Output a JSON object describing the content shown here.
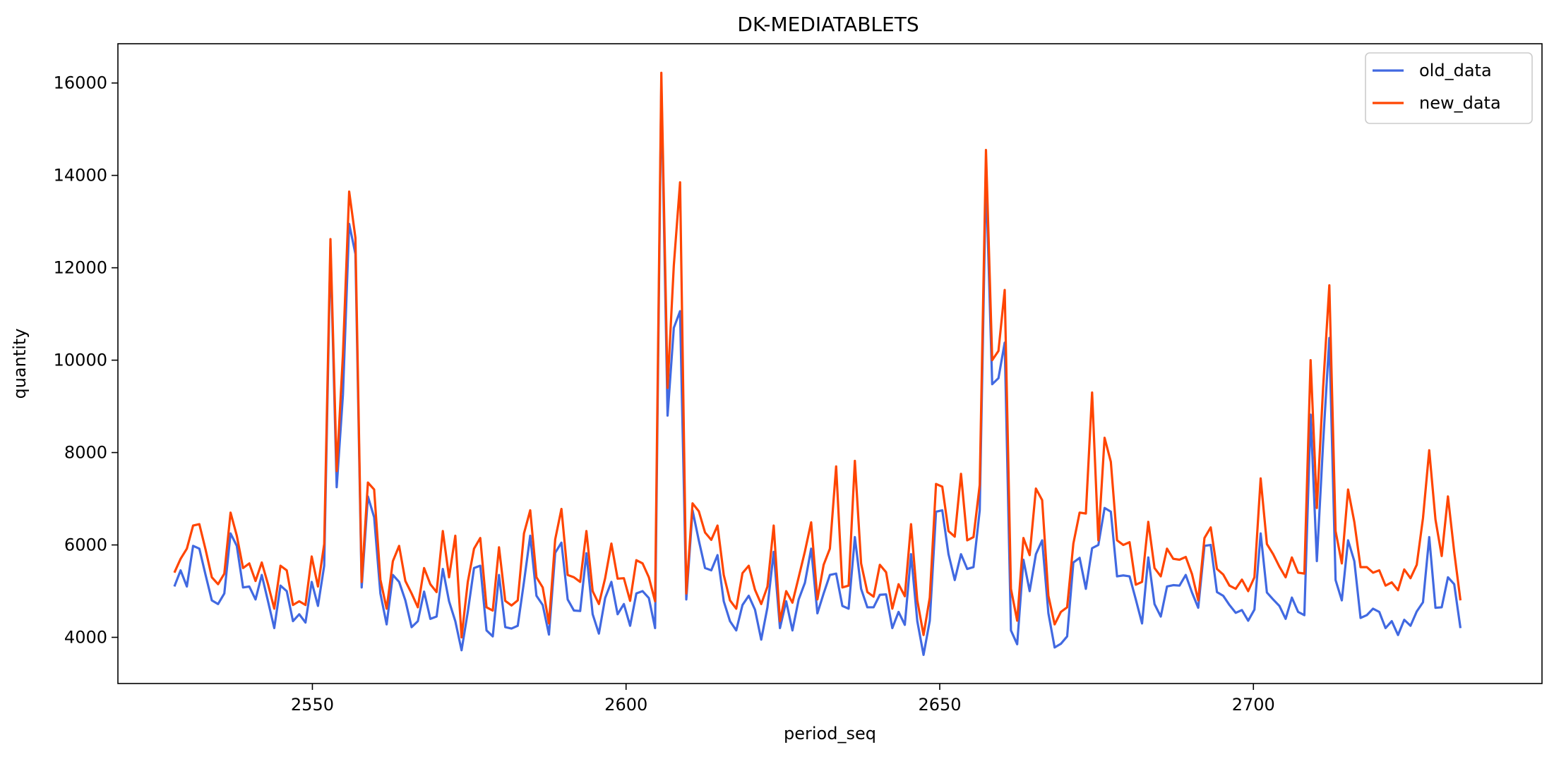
{
  "chart_data": {
    "type": "line",
    "title": "DK-MEDIATABLETS",
    "xlabel": "period_seq",
    "ylabel": "quantity",
    "xlim": [
      2519,
      2746
    ],
    "ylim": [
      3000,
      16850
    ],
    "x_ticks": [
      2550,
      2600,
      2650,
      2700
    ],
    "y_ticks": [
      4000,
      6000,
      8000,
      10000,
      12000,
      14000,
      16000
    ],
    "grid": false,
    "legend_position": "top-right",
    "colors": {
      "old_data": "#4169E1",
      "new_data": "#FF4500"
    },
    "x_start": 2528,
    "x_end": 2733,
    "series": [
      {
        "name": "old_data",
        "color": "#4169E1",
        "values": [
          5100,
          5450,
          5100,
          5980,
          5920,
          5350,
          4800,
          4720,
          4950,
          6250,
          5980,
          5080,
          5100,
          4820,
          5350,
          4780,
          4200,
          5120,
          5000,
          4350,
          4500,
          4320,
          5200,
          4680,
          5550,
          12450,
          7250,
          9250,
          12950,
          12300,
          5080,
          7050,
          6600,
          4950,
          4280,
          5350,
          5200,
          4800,
          4220,
          4350,
          4990,
          4400,
          4450,
          5480,
          4780,
          4350,
          3720,
          4550,
          5500,
          5550,
          4150,
          4020,
          5350,
          4220,
          4190,
          4250,
          5200,
          6200,
          4900,
          4700,
          4060,
          5830,
          6050,
          4820,
          4580,
          4570,
          5820,
          4500,
          4080,
          4850,
          5200,
          4500,
          4720,
          4250,
          4950,
          5000,
          4850,
          4200,
          16000,
          8800,
          10700,
          11060,
          4820,
          6750,
          6100,
          5500,
          5450,
          5780,
          4780,
          4350,
          4150,
          4700,
          4900,
          4600,
          3950,
          4650,
          5850,
          4200,
          4780,
          4150,
          4820,
          5180,
          5920,
          4520,
          4950,
          5350,
          5380,
          4680,
          4620,
          6170,
          5050,
          4650,
          4650,
          4920,
          4930,
          4200,
          4550,
          4270,
          5800,
          4350,
          3620,
          4360,
          6720,
          6750,
          5800,
          5240,
          5800,
          5480,
          5520,
          6750,
          14000,
          9480,
          9610,
          10380,
          4150,
          3850,
          5680,
          5000,
          5800,
          6100,
          4520,
          3780,
          3860,
          4020,
          5620,
          5720,
          5050,
          5930,
          6000,
          6800,
          6720,
          5320,
          5340,
          5320,
          4820,
          4300,
          5730,
          4720,
          4450,
          5100,
          5130,
          5120,
          5350,
          4970,
          4640,
          5980,
          6000,
          4980,
          4900,
          4700,
          4530,
          4590,
          4360,
          4600,
          6250,
          4970,
          4820,
          4680,
          4400,
          4860,
          4550,
          4480,
          8820,
          5650,
          8200,
          10480,
          5240,
          4800,
          6100,
          5650,
          4420,
          4480,
          4620,
          4550,
          4200,
          4350,
          4050,
          4380,
          4250,
          4560,
          4760,
          6170,
          4640,
          4650,
          5300,
          5150,
          4200
        ]
      },
      {
        "name": "new_data",
        "color": "#FF4500",
        "values": [
          5400,
          5700,
          5920,
          6420,
          6450,
          5900,
          5300,
          5150,
          5380,
          6700,
          6200,
          5500,
          5600,
          5220,
          5620,
          5150,
          4620,
          5550,
          5450,
          4700,
          4780,
          4700,
          5750,
          5100,
          6020,
          12620,
          7600,
          10120,
          13650,
          12650,
          5200,
          7350,
          7200,
          5250,
          4620,
          5650,
          5980,
          5220,
          4950,
          4650,
          5500,
          5150,
          4980,
          6300,
          5300,
          6200,
          4000,
          5200,
          5920,
          6150,
          4650,
          4580,
          5950,
          4790,
          4690,
          4800,
          6250,
          6750,
          5300,
          5080,
          4300,
          6120,
          6780,
          5350,
          5300,
          5200,
          6300,
          5000,
          4720,
          5280,
          6030,
          5270,
          5280,
          4790,
          5670,
          5600,
          5300,
          4780,
          16220,
          9400,
          12050,
          13850,
          4950,
          6900,
          6730,
          6270,
          6110,
          6420,
          5350,
          4800,
          4620,
          5390,
          5550,
          5030,
          4720,
          5100,
          6420,
          4350,
          5000,
          4750,
          5300,
          5860,
          6490,
          4820,
          5570,
          5920,
          7700,
          5080,
          5120,
          7820,
          5600,
          4980,
          4880,
          5570,
          5410,
          4620,
          5150,
          4890,
          6450,
          4800,
          4050,
          4860,
          7320,
          7260,
          6300,
          6180,
          7540,
          6100,
          6170,
          7300,
          14550,
          10000,
          10200,
          11520,
          5050,
          4360,
          6150,
          5780,
          7220,
          6970,
          4900,
          4280,
          4550,
          4650,
          6030,
          6700,
          6680,
          9300,
          6100,
          8320,
          7800,
          6100,
          6000,
          6060,
          5140,
          5200,
          6500,
          5500,
          5320,
          5920,
          5700,
          5680,
          5740,
          5370,
          4800,
          6150,
          6380,
          5480,
          5360,
          5120,
          5050,
          5250,
          5000,
          5300,
          7440,
          6020,
          5800,
          5530,
          5300,
          5730,
          5400,
          5380,
          10000,
          6800,
          9400,
          11620,
          6300,
          5600,
          7200,
          6500,
          5520,
          5520,
          5400,
          5450,
          5120,
          5190,
          5020,
          5470,
          5280,
          5570,
          6580,
          8050,
          6550,
          5760,
          7050,
          5850,
          4800
        ]
      }
    ]
  }
}
